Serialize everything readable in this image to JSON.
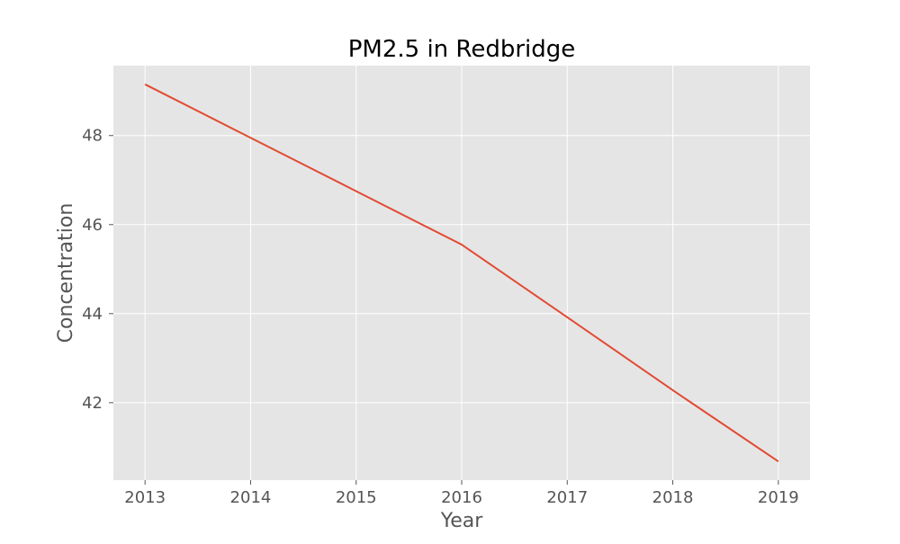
{
  "chart_data": {
    "type": "line",
    "title": "PM2.5 in Redbridge",
    "xlabel": "Year",
    "ylabel": "Concentration",
    "x": [
      2013,
      2014,
      2015,
      2016,
      2017,
      2018,
      2019
    ],
    "series": [
      {
        "values": [
          49.15,
          47.95,
          46.75,
          45.55,
          43.92,
          42.28,
          40.68
        ]
      }
    ],
    "xticks": [
      "2013",
      "2014",
      "2015",
      "2016",
      "2017",
      "2018",
      "2019"
    ],
    "yticks": [
      "42",
      "44",
      "46",
      "48"
    ],
    "xlim": [
      2012.7,
      2019.3
    ],
    "ylim": [
      40.26,
      49.57
    ],
    "grid": true,
    "colors": {
      "background": "#e5e5e5",
      "grid": "#ffffff",
      "line": "#e24a33"
    }
  }
}
